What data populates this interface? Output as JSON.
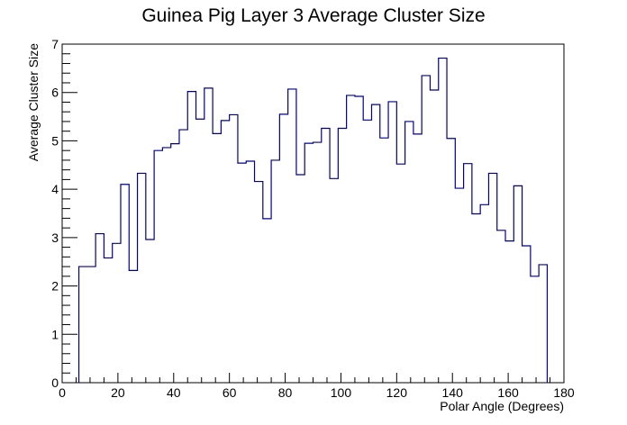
{
  "chart_data": {
    "type": "step",
    "title": "Guinea Pig Layer 3 Average Cluster Size",
    "xlabel": "Polar Angle (Degrees)",
    "ylabel": "Average Cluster Size",
    "xlim": [
      0,
      180
    ],
    "ylim": [
      0,
      7
    ],
    "x_ticks": [
      0,
      20,
      40,
      60,
      80,
      100,
      120,
      140,
      160,
      180
    ],
    "y_ticks": [
      0,
      1,
      2,
      3,
      4,
      5,
      6,
      7
    ],
    "bin_width": 3,
    "series": [
      {
        "color": "#00008b",
        "bins": [
          {
            "x": 6,
            "y": 2.4
          },
          {
            "x": 9,
            "y": 2.4
          },
          {
            "x": 12,
            "y": 3.08
          },
          {
            "x": 15,
            "y": 2.58
          },
          {
            "x": 18,
            "y": 2.88
          },
          {
            "x": 21,
            "y": 4.1
          },
          {
            "x": 24,
            "y": 2.32
          },
          {
            "x": 27,
            "y": 4.33
          },
          {
            "x": 30,
            "y": 2.96
          },
          {
            "x": 33,
            "y": 4.8
          },
          {
            "x": 36,
            "y": 4.86
          },
          {
            "x": 39,
            "y": 4.94
          },
          {
            "x": 42,
            "y": 5.23
          },
          {
            "x": 45,
            "y": 6.02
          },
          {
            "x": 48,
            "y": 5.45
          },
          {
            "x": 51,
            "y": 6.09
          },
          {
            "x": 54,
            "y": 5.15
          },
          {
            "x": 57,
            "y": 5.42
          },
          {
            "x": 60,
            "y": 5.54
          },
          {
            "x": 63,
            "y": 4.54
          },
          {
            "x": 66,
            "y": 4.58
          },
          {
            "x": 69,
            "y": 4.16
          },
          {
            "x": 72,
            "y": 3.39
          },
          {
            "x": 75,
            "y": 4.6
          },
          {
            "x": 78,
            "y": 5.55
          },
          {
            "x": 81,
            "y": 6.07
          },
          {
            "x": 84,
            "y": 4.3
          },
          {
            "x": 87,
            "y": 4.95
          },
          {
            "x": 90,
            "y": 4.97
          },
          {
            "x": 93,
            "y": 5.26
          },
          {
            "x": 96,
            "y": 4.22
          },
          {
            "x": 99,
            "y": 5.26
          },
          {
            "x": 102,
            "y": 5.94
          },
          {
            "x": 105,
            "y": 5.92
          },
          {
            "x": 108,
            "y": 5.43
          },
          {
            "x": 111,
            "y": 5.75
          },
          {
            "x": 114,
            "y": 5.06
          },
          {
            "x": 117,
            "y": 5.81
          },
          {
            "x": 120,
            "y": 4.52
          },
          {
            "x": 123,
            "y": 5.4
          },
          {
            "x": 126,
            "y": 5.14
          },
          {
            "x": 129,
            "y": 6.35
          },
          {
            "x": 132,
            "y": 6.05
          },
          {
            "x": 135,
            "y": 6.71
          },
          {
            "x": 138,
            "y": 5.05
          },
          {
            "x": 141,
            "y": 4.02
          },
          {
            "x": 144,
            "y": 4.53
          },
          {
            "x": 147,
            "y": 3.49
          },
          {
            "x": 150,
            "y": 3.68
          },
          {
            "x": 153,
            "y": 4.33
          },
          {
            "x": 156,
            "y": 3.15
          },
          {
            "x": 159,
            "y": 2.93
          },
          {
            "x": 162,
            "y": 4.07
          },
          {
            "x": 165,
            "y": 2.83
          },
          {
            "x": 168,
            "y": 2.2
          },
          {
            "x": 171,
            "y": 2.44
          }
        ]
      }
    ],
    "grid": false,
    "legend": "none"
  }
}
